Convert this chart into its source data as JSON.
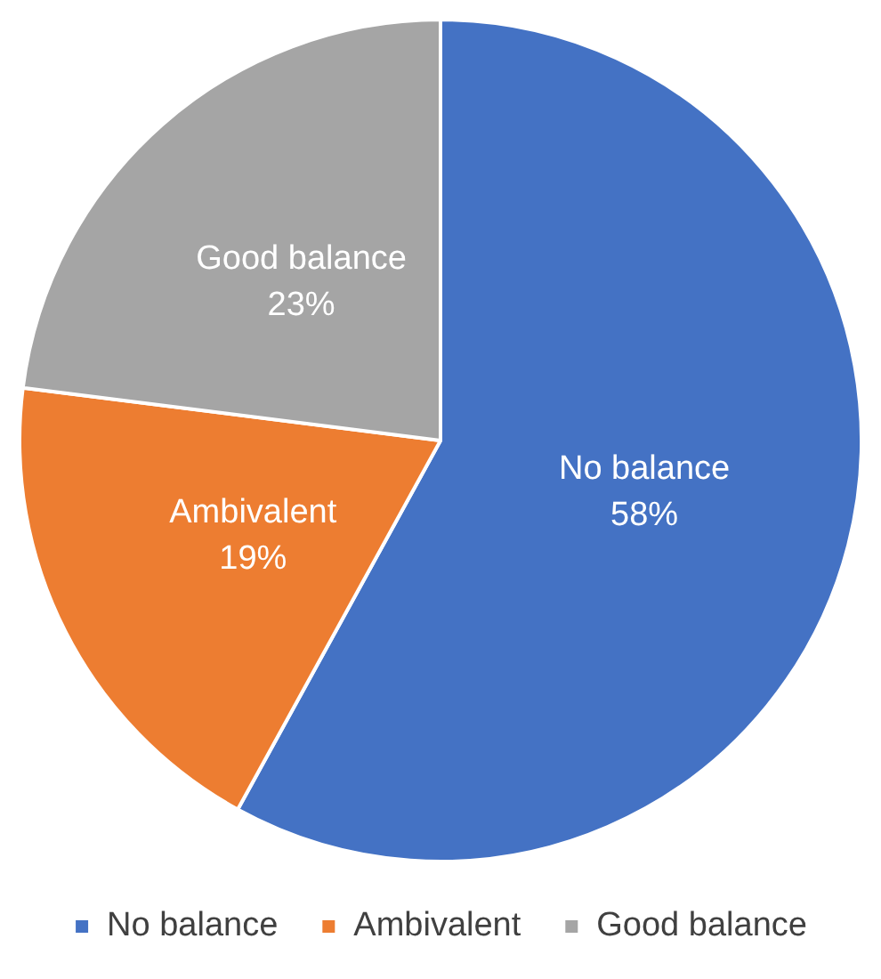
{
  "chart_data": {
    "type": "pie",
    "categories": [
      "No balance",
      "Ambivalent",
      "Good balance"
    ],
    "values": [
      58,
      19,
      23
    ],
    "colors": [
      "#4472c4",
      "#ed7d31",
      "#a5a5a5"
    ],
    "value_labels": [
      "58%",
      "19%",
      "23%"
    ],
    "legend": "bottom"
  }
}
